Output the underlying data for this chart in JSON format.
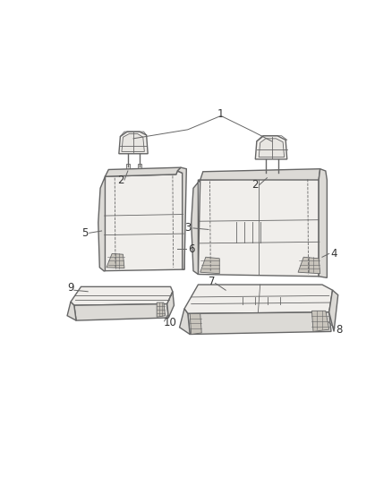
{
  "bg_color": "#ffffff",
  "line_color": "#666666",
  "fill_color": "#f0eeeb",
  "fill_dark": "#dcdad6",
  "mesh_color": "#c8c4bc",
  "label_color": "#333333",
  "figsize": [
    4.38,
    5.33
  ],
  "dpi": 100,
  "lw_main": 1.0,
  "lw_thin": 0.6,
  "label_fs": 8.5
}
